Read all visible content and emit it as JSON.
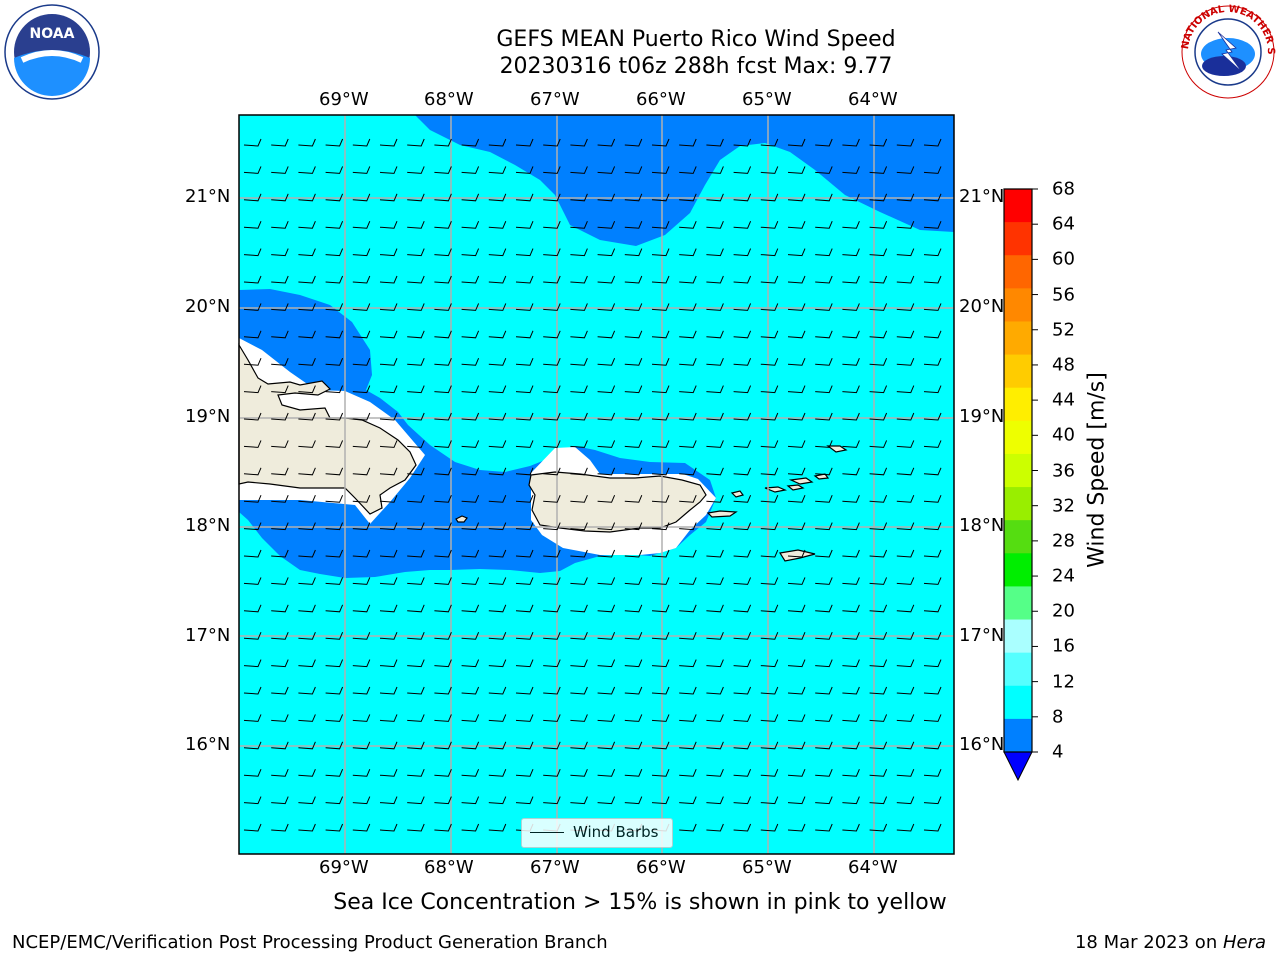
{
  "header": {
    "title_line1": "GEFS MEAN Puerto Rico Wind Speed",
    "title_line2": "20230316 t06z 288h fcst   Max: 9.77"
  },
  "logos": {
    "left": "NOAA",
    "right": "NATIONAL WEATHER SERVICE"
  },
  "map": {
    "lon_labels": [
      "69°W",
      "68°W",
      "67°W",
      "66°W",
      "65°W",
      "64°W"
    ],
    "lat_labels": [
      "21°N",
      "20°N",
      "19°N",
      "18°N",
      "17°N",
      "16°N"
    ],
    "land_color": "#efecdc",
    "ocean_color": "#00ffff",
    "low_wind_color": "#0080ff"
  },
  "legend": {
    "label": "Wind Barbs"
  },
  "colorbar": {
    "label": "Wind Speed [m/s]",
    "ticks": [
      "68",
      "64",
      "60",
      "56",
      "52",
      "48",
      "44",
      "40",
      "36",
      "32",
      "28",
      "24",
      "20",
      "16",
      "12",
      "8",
      "4"
    ],
    "colors": [
      "#ff0000",
      "#ff3300",
      "#ff6600",
      "#ff8800",
      "#ffaa00",
      "#ffcc00",
      "#ffee00",
      "#eeff00",
      "#ccff00",
      "#99ee00",
      "#55dd11",
      "#00ee00",
      "#55ff88",
      "#aaffff",
      "#55ffff",
      "#00ffff",
      "#0080ff"
    ],
    "extend_color": "#0000ff"
  },
  "subtitle": "Sea Ice Concentration > 15% is shown in pink to yellow",
  "footer": {
    "left": "NCEP/EMC/Verification Post Processing Product Generation Branch",
    "right_date": "18 Mar 2023 on ",
    "right_host": "Hera"
  }
}
